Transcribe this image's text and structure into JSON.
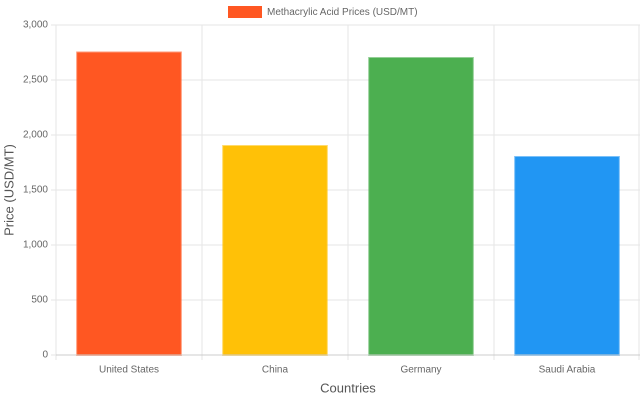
{
  "chart_data": {
    "type": "bar",
    "categories": [
      "United States",
      "China",
      "Germany",
      "Saudi Arabia"
    ],
    "series": [
      {
        "name": "Methacrylic Acid Prices (USD/MT)",
        "color": "#ff5722",
        "colors": [
          "#ff5722",
          "#ffc107",
          "#4caf50",
          "#2196f3"
        ],
        "values": [
          2750,
          1900,
          2700,
          1800
        ]
      }
    ],
    "x_label": "Countries",
    "y_label": "Price (USD/MT)",
    "ylim": [
      0,
      3000
    ],
    "yticks": [
      0,
      500,
      {
        "value": 1000,
        "label": "1,000"
      },
      {
        "value": 1500,
        "label": "1,500"
      },
      {
        "value": 2000,
        "label": "2,000"
      },
      {
        "value": 2500,
        "label": "2,500"
      },
      {
        "value": 3000,
        "label": "3,000"
      }
    ],
    "grid": true,
    "legend": "top"
  }
}
